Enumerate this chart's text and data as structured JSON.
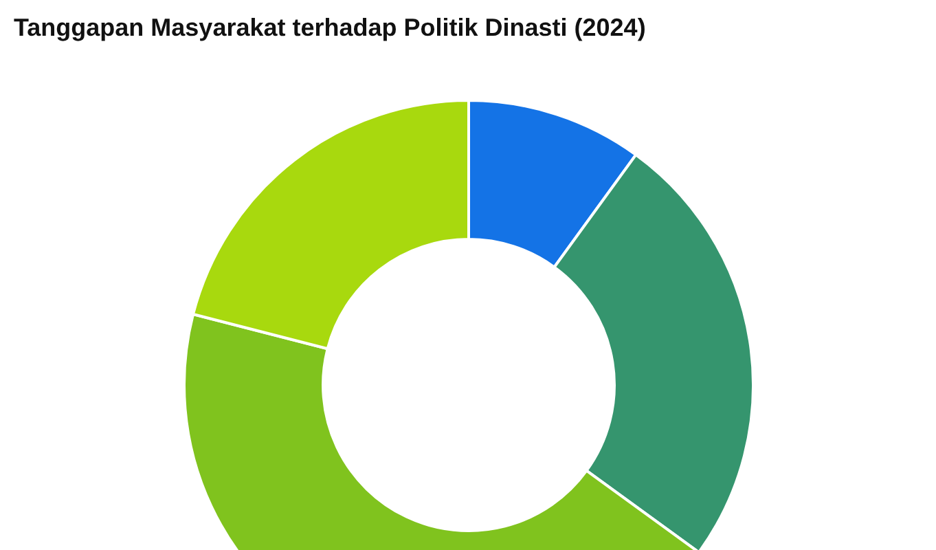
{
  "chart_data": {
    "type": "donut",
    "title": "Tanggapan Masyarakat terhadap Politik Dinasti (2024)",
    "categories": [
      null,
      null,
      null,
      null
    ],
    "values": [
      10,
      25,
      44,
      21
    ],
    "colors": [
      "#1473e6",
      "#35956e",
      "#80c31e",
      "#a8d90e"
    ]
  }
}
